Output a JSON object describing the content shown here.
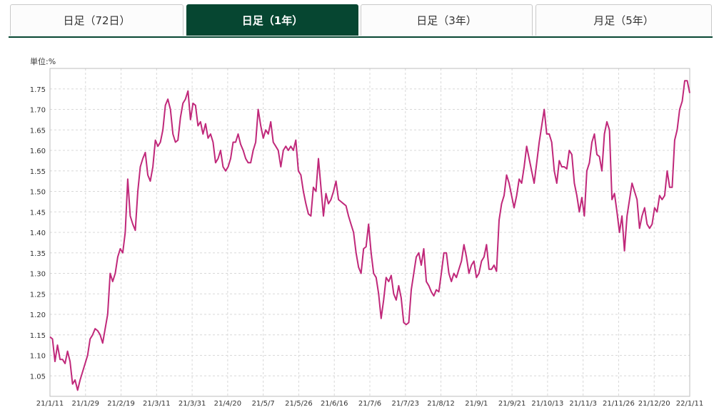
{
  "tabs": [
    {
      "label": "日足（72日）",
      "active": false
    },
    {
      "label": "日足（1年）",
      "active": true
    },
    {
      "label": "日足（3年）",
      "active": false
    },
    {
      "label": "月足（5年）",
      "active": false
    }
  ],
  "colors": {
    "tab_active": "#064631",
    "line": "#c0287a",
    "grid": "#d8d8d8"
  },
  "chart_data": {
    "type": "line",
    "unit_label": "単位:%",
    "ylim": [
      1.0,
      1.8
    ],
    "yticks": [
      "1.05",
      "1.10",
      "1.15",
      "1.20",
      "1.25",
      "1.30",
      "1.35",
      "1.40",
      "1.45",
      "1.50",
      "1.55",
      "1.60",
      "1.65",
      "1.70",
      "1.75"
    ],
    "xticks": [
      "21/1/11",
      "21/1/29",
      "21/2/19",
      "21/3/11",
      "21/3/31",
      "21/4/20",
      "21/5/7",
      "21/5/26",
      "21/6/16",
      "21/7/6",
      "21/7/23",
      "21/8/12",
      "21/9/1",
      "21/9/21",
      "21/10/13",
      "21/11/3",
      "21/11/26",
      "21/12/20",
      "22/1/11"
    ],
    "grid": true,
    "series": [
      {
        "values": [
          1.145,
          1.14,
          1.085,
          1.125,
          1.09,
          1.09,
          1.08,
          1.11,
          1.085,
          1.03,
          1.04,
          1.015,
          1.04,
          1.06,
          1.08,
          1.1,
          1.14,
          1.15,
          1.165,
          1.16,
          1.15,
          1.13,
          1.165,
          1.2,
          1.3,
          1.28,
          1.3,
          1.34,
          1.36,
          1.35,
          1.4,
          1.53,
          1.44,
          1.42,
          1.405,
          1.5,
          1.56,
          1.58,
          1.595,
          1.54,
          1.525,
          1.56,
          1.625,
          1.61,
          1.62,
          1.65,
          1.71,
          1.725,
          1.7,
          1.64,
          1.62,
          1.625,
          1.68,
          1.715,
          1.725,
          1.745,
          1.675,
          1.715,
          1.71,
          1.66,
          1.67,
          1.64,
          1.665,
          1.63,
          1.64,
          1.62,
          1.57,
          1.58,
          1.6,
          1.56,
          1.55,
          1.56,
          1.58,
          1.62,
          1.62,
          1.64,
          1.615,
          1.6,
          1.58,
          1.57,
          1.57,
          1.6,
          1.62,
          1.7,
          1.66,
          1.63,
          1.65,
          1.64,
          1.67,
          1.62,
          1.61,
          1.6,
          1.56,
          1.6,
          1.61,
          1.6,
          1.61,
          1.6,
          1.625,
          1.55,
          1.54,
          1.5,
          1.47,
          1.445,
          1.44,
          1.51,
          1.5,
          1.58,
          1.51,
          1.44,
          1.495,
          1.47,
          1.48,
          1.5,
          1.525,
          1.48,
          1.475,
          1.47,
          1.465,
          1.44,
          1.42,
          1.4,
          1.35,
          1.315,
          1.3,
          1.36,
          1.365,
          1.42,
          1.35,
          1.3,
          1.29,
          1.25,
          1.19,
          1.235,
          1.29,
          1.28,
          1.295,
          1.25,
          1.235,
          1.27,
          1.24,
          1.18,
          1.175,
          1.18,
          1.26,
          1.3,
          1.34,
          1.35,
          1.32,
          1.36,
          1.28,
          1.27,
          1.255,
          1.245,
          1.26,
          1.255,
          1.3,
          1.35,
          1.35,
          1.3,
          1.28,
          1.3,
          1.29,
          1.31,
          1.33,
          1.37,
          1.34,
          1.3,
          1.32,
          1.33,
          1.29,
          1.3,
          1.33,
          1.34,
          1.37,
          1.31,
          1.31,
          1.32,
          1.305,
          1.43,
          1.47,
          1.49,
          1.54,
          1.52,
          1.49,
          1.46,
          1.49,
          1.53,
          1.52,
          1.56,
          1.61,
          1.58,
          1.55,
          1.52,
          1.57,
          1.62,
          1.66,
          1.7,
          1.64,
          1.64,
          1.62,
          1.55,
          1.52,
          1.575,
          1.56,
          1.56,
          1.555,
          1.6,
          1.59,
          1.52,
          1.49,
          1.45,
          1.485,
          1.44,
          1.55,
          1.57,
          1.62,
          1.64,
          1.59,
          1.585,
          1.55,
          1.64,
          1.67,
          1.65,
          1.48,
          1.495,
          1.45,
          1.4,
          1.44,
          1.355,
          1.44,
          1.48,
          1.52,
          1.5,
          1.48,
          1.41,
          1.44,
          1.46,
          1.42,
          1.41,
          1.42,
          1.46,
          1.45,
          1.49,
          1.48,
          1.49,
          1.55,
          1.51,
          1.51,
          1.625,
          1.65,
          1.7,
          1.72,
          1.77,
          1.77,
          1.74
        ]
      }
    ]
  }
}
